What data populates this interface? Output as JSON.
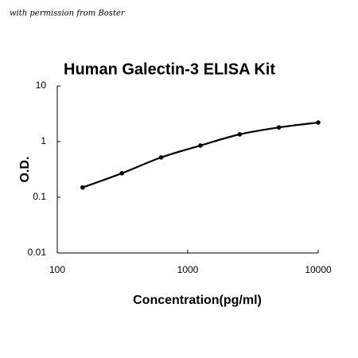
{
  "watermark": "with permission from Boster",
  "chart_data": {
    "type": "line",
    "title": "Human Galectin-3  ELISA Kit",
    "x_label": "Concentration(pg/ml)",
    "y_label": "O.D.",
    "x": [
      156.25,
      312.5,
      625,
      1250,
      2500,
      5000,
      10000
    ],
    "values": [
      0.15,
      0.27,
      0.52,
      0.85,
      1.35,
      1.8,
      2.2
    ],
    "color": "#000000",
    "xscale": "log",
    "yscale": "log",
    "xlim": [
      100,
      10000
    ],
    "ylim": [
      0.01,
      10
    ],
    "xticks": [
      100,
      1000,
      10000
    ],
    "yticks": [
      0.01,
      0.1,
      1,
      10
    ],
    "smooth": true,
    "markers": true
  }
}
